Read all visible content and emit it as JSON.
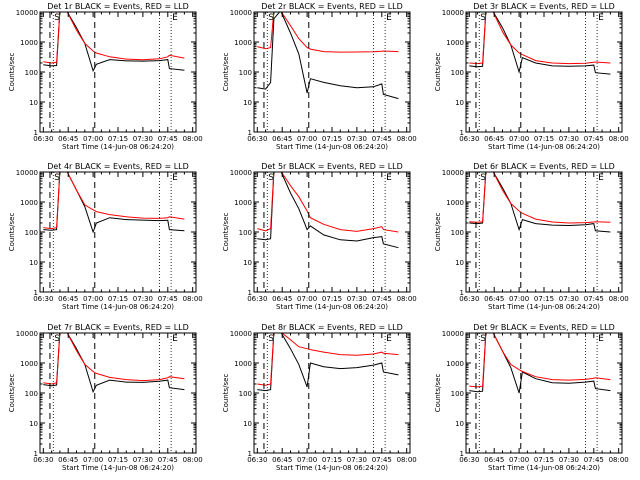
{
  "colors": {
    "background": "#ffffff",
    "axes": "#000000",
    "events": "#000000",
    "lld": "#ff0000"
  },
  "chart_data": [
    {
      "type": "line",
      "title": "Det 1r BLACK = Events, RED = LLD",
      "xlabel": "Start Time (14-Jun-08 06:24:20)",
      "ylabel": "Counts/sec",
      "ylog": true,
      "ylim": [
        1,
        10000
      ],
      "yticks": [
        "1",
        "10",
        "100",
        "1000",
        "10000"
      ],
      "xticks": [
        "06:30",
        "06:45",
        "07:00",
        "07:15",
        "07:30",
        "07:45",
        "08:00"
      ],
      "x": [
        "06:30",
        "06:35",
        "06:38",
        "06:40",
        "06:44",
        "06:50",
        "06:55",
        "07:00",
        "07:02",
        "07:10",
        "07:20",
        "07:30",
        "07:40",
        "07:45",
        "07:46",
        "07:55"
      ],
      "series": [
        {
          "name": "Events",
          "color": "#000000",
          "values": [
            175,
            160,
            165,
            11000,
            11000,
            3000,
            900,
            110,
            180,
            260,
            235,
            230,
            240,
            260,
            130,
            115
          ]
        },
        {
          "name": "LLD",
          "color": "#ff0000",
          "values": [
            220,
            200,
            210,
            11000,
            11000,
            2500,
            900,
            500,
            430,
            320,
            270,
            255,
            275,
            320,
            360,
            290
          ]
        }
      ],
      "markers": [
        {
          "x": "06:34",
          "label": "",
          "dash": true
        },
        {
          "x": "06:36",
          "label": "S",
          "dash": false
        },
        {
          "x": "07:01",
          "label": "",
          "dash": true
        },
        {
          "x": "07:40",
          "label": "",
          "dash": false
        },
        {
          "x": "07:47",
          "label": "E",
          "dash": false
        }
      ]
    },
    {
      "type": "line",
      "title": "Det 2r BLACK = Events, RED = LLD",
      "xlabel": "Start Time (14-Jun-08 06:24:20)",
      "ylabel": "Counts/sec",
      "ylog": true,
      "ylim": [
        1,
        10000
      ],
      "yticks": [
        "1",
        "10",
        "100",
        "1000",
        "10000"
      ],
      "xticks": [
        "06:30",
        "06:45",
        "07:00",
        "07:15",
        "07:30",
        "07:45",
        "08:00"
      ],
      "x": [
        "06:30",
        "06:35",
        "06:38",
        "06:40",
        "06:44",
        "06:50",
        "06:55",
        "07:00",
        "07:02",
        "07:10",
        "07:20",
        "07:30",
        "07:40",
        "07:45",
        "07:46",
        "07:55"
      ],
      "series": [
        {
          "name": "Events",
          "color": "#000000",
          "values": [
            30,
            27,
            45,
            6000,
            11000,
            2000,
            400,
            20,
            60,
            45,
            35,
            30,
            32,
            40,
            18,
            13
          ]
        },
        {
          "name": "LLD",
          "color": "#ff0000",
          "values": [
            700,
            600,
            650,
            11000,
            11000,
            3500,
            1300,
            650,
            580,
            480,
            460,
            465,
            475,
            490,
            500,
            480
          ]
        }
      ],
      "markers": [
        {
          "x": "06:34",
          "label": "",
          "dash": true
        },
        {
          "x": "06:36",
          "label": "S",
          "dash": false
        },
        {
          "x": "07:01",
          "label": "",
          "dash": true
        },
        {
          "x": "07:40",
          "label": "",
          "dash": false
        },
        {
          "x": "07:47",
          "label": "E",
          "dash": false
        }
      ]
    },
    {
      "type": "line",
      "title": "Det 3r BLACK = Events, RED = LLD",
      "xlabel": "Start Time (14-Jun-08 06:24:20)",
      "ylabel": "Counts/sec",
      "ylog": true,
      "ylim": [
        1,
        10000
      ],
      "yticks": [
        "1",
        "10",
        "100",
        "1000",
        "10000"
      ],
      "xticks": [
        "06:30",
        "06:45",
        "07:00",
        "07:15",
        "07:30",
        "07:45",
        "08:00"
      ],
      "x": [
        "06:30",
        "06:35",
        "06:38",
        "06:40",
        "06:44",
        "06:50",
        "06:55",
        "07:00",
        "07:02",
        "07:10",
        "07:20",
        "07:30",
        "07:40",
        "07:45",
        "07:46",
        "07:55"
      ],
      "series": [
        {
          "name": "Events",
          "color": "#000000",
          "values": [
            160,
            150,
            155,
            11000,
            11000,
            3000,
            800,
            100,
            300,
            200,
            160,
            155,
            160,
            170,
            95,
            85
          ]
        },
        {
          "name": "LLD",
          "color": "#ff0000",
          "values": [
            200,
            190,
            200,
            11000,
            11000,
            2200,
            800,
            430,
            380,
            240,
            200,
            190,
            195,
            210,
            215,
            200
          ]
        }
      ],
      "markers": [
        {
          "x": "06:34",
          "label": "",
          "dash": true
        },
        {
          "x": "06:36",
          "label": "S",
          "dash": false
        },
        {
          "x": "07:01",
          "label": "",
          "dash": true
        },
        {
          "x": "07:40",
          "label": "",
          "dash": false
        },
        {
          "x": "07:47",
          "label": "E",
          "dash": false
        }
      ]
    },
    {
      "type": "line",
      "title": "Det 4r BLACK = Events, RED = LLD",
      "xlabel": "Start Time (14-Jun-08 06:24:20)",
      "ylabel": "Counts/sec",
      "ylog": true,
      "ylim": [
        1,
        10000
      ],
      "yticks": [
        "1",
        "10",
        "100",
        "1000",
        "10000"
      ],
      "xticks": [
        "06:30",
        "06:45",
        "07:00",
        "07:15",
        "07:30",
        "07:45",
        "08:00"
      ],
      "x": [
        "06:30",
        "06:35",
        "06:38",
        "06:40",
        "06:44",
        "06:50",
        "06:55",
        "07:00",
        "07:02",
        "07:10",
        "07:20",
        "07:30",
        "07:40",
        "07:45",
        "07:46",
        "07:55"
      ],
      "series": [
        {
          "name": "Events",
          "color": "#000000",
          "values": [
            120,
            115,
            120,
            11000,
            11000,
            2500,
            700,
            100,
            200,
            300,
            260,
            250,
            240,
            245,
            120,
            110
          ]
        },
        {
          "name": "LLD",
          "color": "#ff0000",
          "values": [
            140,
            130,
            140,
            11000,
            11000,
            2500,
            800,
            550,
            480,
            380,
            320,
            290,
            285,
            300,
            320,
            270
          ]
        }
      ],
      "markers": [
        {
          "x": "06:34",
          "label": "",
          "dash": true
        },
        {
          "x": "06:36",
          "label": "S",
          "dash": false
        },
        {
          "x": "07:01",
          "label": "",
          "dash": true
        },
        {
          "x": "07:40",
          "label": "",
          "dash": false
        },
        {
          "x": "07:47",
          "label": "E",
          "dash": false
        }
      ]
    },
    {
      "type": "line",
      "title": "Det 5r BLACK = Events, RED = LLD",
      "xlabel": "Start Time (14-Jun-08 06:24:20)",
      "ylabel": "Counts/sec",
      "ylog": true,
      "ylim": [
        1,
        10000
      ],
      "yticks": [
        "1",
        "10",
        "100",
        "1000",
        "10000"
      ],
      "xticks": [
        "06:30",
        "06:45",
        "07:00",
        "07:15",
        "07:30",
        "07:45",
        "08:00"
      ],
      "x": [
        "06:30",
        "06:35",
        "06:38",
        "06:40",
        "06:44",
        "06:50",
        "06:55",
        "07:00",
        "07:02",
        "07:10",
        "07:20",
        "07:30",
        "07:40",
        "07:45",
        "07:46",
        "07:55"
      ],
      "series": [
        {
          "name": "Events",
          "color": "#000000",
          "values": [
            60,
            55,
            60,
            11000,
            11000,
            2000,
            600,
            120,
            160,
            80,
            55,
            50,
            65,
            70,
            40,
            30
          ]
        },
        {
          "name": "LLD",
          "color": "#ff0000",
          "values": [
            130,
            110,
            130,
            11000,
            11000,
            3500,
            1500,
            500,
            300,
            180,
            120,
            105,
            130,
            150,
            120,
            100
          ]
        }
      ],
      "markers": [
        {
          "x": "06:34",
          "label": "",
          "dash": true
        },
        {
          "x": "06:36",
          "label": "S",
          "dash": false
        },
        {
          "x": "07:01",
          "label": "",
          "dash": true
        },
        {
          "x": "07:40",
          "label": "",
          "dash": false
        },
        {
          "x": "07:47",
          "label": "E",
          "dash": false
        }
      ]
    },
    {
      "type": "line",
      "title": "Det 6r BLACK = Events, RED = LLD",
      "xlabel": "Start Time (14-Jun-08 06:24:20)",
      "ylabel": "Counts/sec",
      "ylog": true,
      "ylim": [
        1,
        10000
      ],
      "yticks": [
        "1",
        "10",
        "100",
        "1000",
        "10000"
      ],
      "xticks": [
        "06:30",
        "06:45",
        "07:00",
        "07:15",
        "07:30",
        "07:45",
        "08:00"
      ],
      "x": [
        "06:30",
        "06:35",
        "06:38",
        "06:40",
        "06:44",
        "06:50",
        "06:55",
        "07:00",
        "07:02",
        "07:10",
        "07:20",
        "07:30",
        "07:40",
        "07:45",
        "07:46",
        "07:55"
      ],
      "series": [
        {
          "name": "Events",
          "color": "#000000",
          "values": [
            200,
            190,
            200,
            11000,
            11000,
            3000,
            900,
            120,
            260,
            190,
            170,
            165,
            175,
            190,
            110,
            100
          ]
        },
        {
          "name": "LLD",
          "color": "#ff0000",
          "values": [
            220,
            210,
            220,
            11000,
            11000,
            2500,
            900,
            500,
            420,
            270,
            215,
            200,
            205,
            215,
            220,
            210
          ]
        }
      ],
      "markers": [
        {
          "x": "06:34",
          "label": "",
          "dash": true
        },
        {
          "x": "06:36",
          "label": "S",
          "dash": false
        },
        {
          "x": "07:01",
          "label": "",
          "dash": true
        },
        {
          "x": "07:40",
          "label": "",
          "dash": false
        },
        {
          "x": "07:47",
          "label": "E",
          "dash": false
        }
      ]
    },
    {
      "type": "line",
      "title": "Det 7r BLACK = Events, RED = LLD",
      "xlabel": "Start Time (14-Jun-08 06:24:20)",
      "ylabel": "Counts/sec",
      "ylog": true,
      "ylim": [
        1,
        10000
      ],
      "yticks": [
        "1",
        "10",
        "100",
        "1000",
        "10000"
      ],
      "xticks": [
        "06:30",
        "06:45",
        "07:00",
        "07:15",
        "07:30",
        "07:45",
        "08:00"
      ],
      "x": [
        "06:30",
        "06:35",
        "06:38",
        "06:40",
        "06:44",
        "06:50",
        "06:55",
        "07:00",
        "07:02",
        "07:10",
        "07:20",
        "07:30",
        "07:40",
        "07:45",
        "07:46",
        "07:55"
      ],
      "series": [
        {
          "name": "Events",
          "color": "#000000",
          "values": [
            190,
            175,
            185,
            11000,
            11000,
            3000,
            900,
            110,
            180,
            270,
            230,
            225,
            245,
            270,
            150,
            130
          ]
        },
        {
          "name": "LLD",
          "color": "#ff0000",
          "values": [
            220,
            200,
            220,
            11000,
            11000,
            2600,
            900,
            520,
            450,
            330,
            280,
            260,
            280,
            320,
            350,
            300
          ]
        }
      ],
      "markers": [
        {
          "x": "06:34",
          "label": "",
          "dash": true
        },
        {
          "x": "06:36",
          "label": "S",
          "dash": false
        },
        {
          "x": "07:01",
          "label": "",
          "dash": true
        },
        {
          "x": "07:40",
          "label": "",
          "dash": false
        },
        {
          "x": "07:47",
          "label": "E",
          "dash": false
        }
      ]
    },
    {
      "type": "line",
      "title": "Det 8r BLACK = Events, RED = LLD",
      "xlabel": "Start Time (14-Jun-08 06:24:20)",
      "ylabel": "Counts/sec",
      "ylog": true,
      "ylim": [
        1,
        10000
      ],
      "yticks": [
        "1",
        "10",
        "100",
        "1000",
        "10000"
      ],
      "xticks": [
        "06:30",
        "06:45",
        "07:00",
        "07:15",
        "07:30",
        "07:45",
        "08:00"
      ],
      "x": [
        "06:30",
        "06:35",
        "06:38",
        "06:40",
        "06:44",
        "06:50",
        "06:55",
        "07:00",
        "07:02",
        "07:10",
        "07:20",
        "07:30",
        "07:40",
        "07:45",
        "07:46",
        "07:55"
      ],
      "series": [
        {
          "name": "Events",
          "color": "#000000",
          "values": [
            130,
            120,
            130,
            11000,
            11000,
            3000,
            900,
            160,
            1000,
            750,
            650,
            700,
            850,
            1000,
            500,
            400
          ]
        },
        {
          "name": "LLD",
          "color": "#ff0000",
          "values": [
            200,
            180,
            200,
            11000,
            11000,
            6000,
            3500,
            3000,
            2800,
            2300,
            1900,
            1800,
            2000,
            2300,
            2100,
            1900
          ]
        }
      ],
      "markers": [
        {
          "x": "06:34",
          "label": "",
          "dash": true
        },
        {
          "x": "06:36",
          "label": "S",
          "dash": false
        },
        {
          "x": "07:01",
          "label": "",
          "dash": true
        },
        {
          "x": "07:40",
          "label": "",
          "dash": false
        },
        {
          "x": "07:47",
          "label": "E",
          "dash": false
        }
      ]
    },
    {
      "type": "line",
      "title": "Det 9r BLACK = Events, RED = LLD",
      "xlabel": "Start Time (14-Jun-08 06:24:20)",
      "ylabel": "Counts/sec",
      "ylog": true,
      "ylim": [
        1,
        10000
      ],
      "yticks": [
        "1",
        "10",
        "100",
        "1000",
        "10000"
      ],
      "xticks": [
        "06:30",
        "06:45",
        "07:00",
        "07:15",
        "07:30",
        "07:45",
        "08:00"
      ],
      "x": [
        "06:30",
        "06:35",
        "06:38",
        "06:40",
        "06:44",
        "06:50",
        "06:55",
        "07:00",
        "07:02",
        "07:10",
        "07:20",
        "07:30",
        "07:40",
        "07:45",
        "07:46",
        "07:55"
      ],
      "series": [
        {
          "name": "Events",
          "color": "#000000",
          "values": [
            120,
            110,
            115,
            11000,
            11000,
            2500,
            700,
            100,
            500,
            300,
            220,
            210,
            230,
            250,
            140,
            120
          ]
        },
        {
          "name": "LLD",
          "color": "#ff0000",
          "values": [
            170,
            160,
            170,
            11000,
            11000,
            2500,
            900,
            600,
            520,
            350,
            280,
            270,
            285,
            310,
            320,
            280
          ]
        }
      ],
      "markers": [
        {
          "x": "06:34",
          "label": "",
          "dash": true
        },
        {
          "x": "06:36",
          "label": "S",
          "dash": false
        },
        {
          "x": "07:01",
          "label": "",
          "dash": true
        },
        {
          "x": "07:40",
          "label": "",
          "dash": false
        },
        {
          "x": "07:47",
          "label": "E",
          "dash": false
        }
      ]
    }
  ]
}
